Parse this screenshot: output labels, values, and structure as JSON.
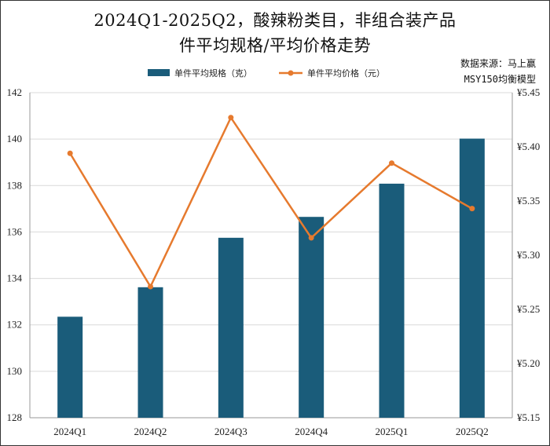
{
  "title_line1": "2024Q1-2025Q2，酸辣粉类目，非组合装产品",
  "title_line2": "件平均规格/平均价格走势",
  "source_line1": "数据来源：马上赢",
  "source_line2": "MSY150均衡模型",
  "colors": {
    "bar": "#1a5c7a",
    "line": "#e67a2e",
    "grid": "#d9d9d9",
    "axis": "#999999"
  },
  "chart_data": {
    "type": "bar",
    "categories": [
      "2024Q1",
      "2024Q2",
      "2024Q3",
      "2024Q4",
      "2025Q1",
      "2025Q2"
    ],
    "series": [
      {
        "name": "单件平均规格（克）",
        "type": "bar",
        "axis": "left",
        "values": [
          132.35,
          133.62,
          135.75,
          136.65,
          138.08,
          140.02
        ]
      },
      {
        "name": "单件平均价格（元）",
        "type": "line",
        "axis": "right",
        "values": [
          5.394,
          5.271,
          5.427,
          5.316,
          5.385,
          5.343
        ]
      }
    ],
    "ylim_left": [
      128,
      142
    ],
    "yticks_left": [
      "142",
      "140",
      "138",
      "136",
      "134",
      "132",
      "130",
      "128"
    ],
    "ylim_right": [
      5.15,
      5.45
    ],
    "yticks_right": [
      "¥5.45",
      "¥5.40",
      "¥5.35",
      "¥5.30",
      "¥5.25",
      "¥5.20",
      "¥5.15"
    ],
    "grid": true,
    "legend": "top-center"
  }
}
